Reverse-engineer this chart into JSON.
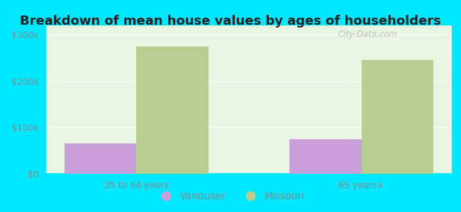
{
  "title": "Breakdown of mean house values by ages of householders",
  "categories": [
    "35 to 64 years",
    "65 years+"
  ],
  "vanduser_values": [
    65000,
    75000
  ],
  "missouri_values": [
    275000,
    245000
  ],
  "vanduser_color": "#c9a0dc",
  "missouri_color": "#b8cd90",
  "background_color": "#00e8ff",
  "plot_bg_top": "#e8f5e2",
  "plot_bg_bottom": "#d0ecd8",
  "yticks": [
    0,
    100000,
    200000,
    300000
  ],
  "ytick_labels": [
    "$0",
    "$100k",
    "$200k",
    "$300k"
  ],
  "ylim": [
    0,
    320000
  ],
  "bar_width": 0.32,
  "legend_labels": [
    "Vanduser",
    "Missouri"
  ],
  "watermark": "City-Data.com",
  "title_fontsize": 13,
  "tick_fontsize": 9,
  "legend_fontsize": 10,
  "title_color": "#222222",
  "tick_color": "#888888"
}
